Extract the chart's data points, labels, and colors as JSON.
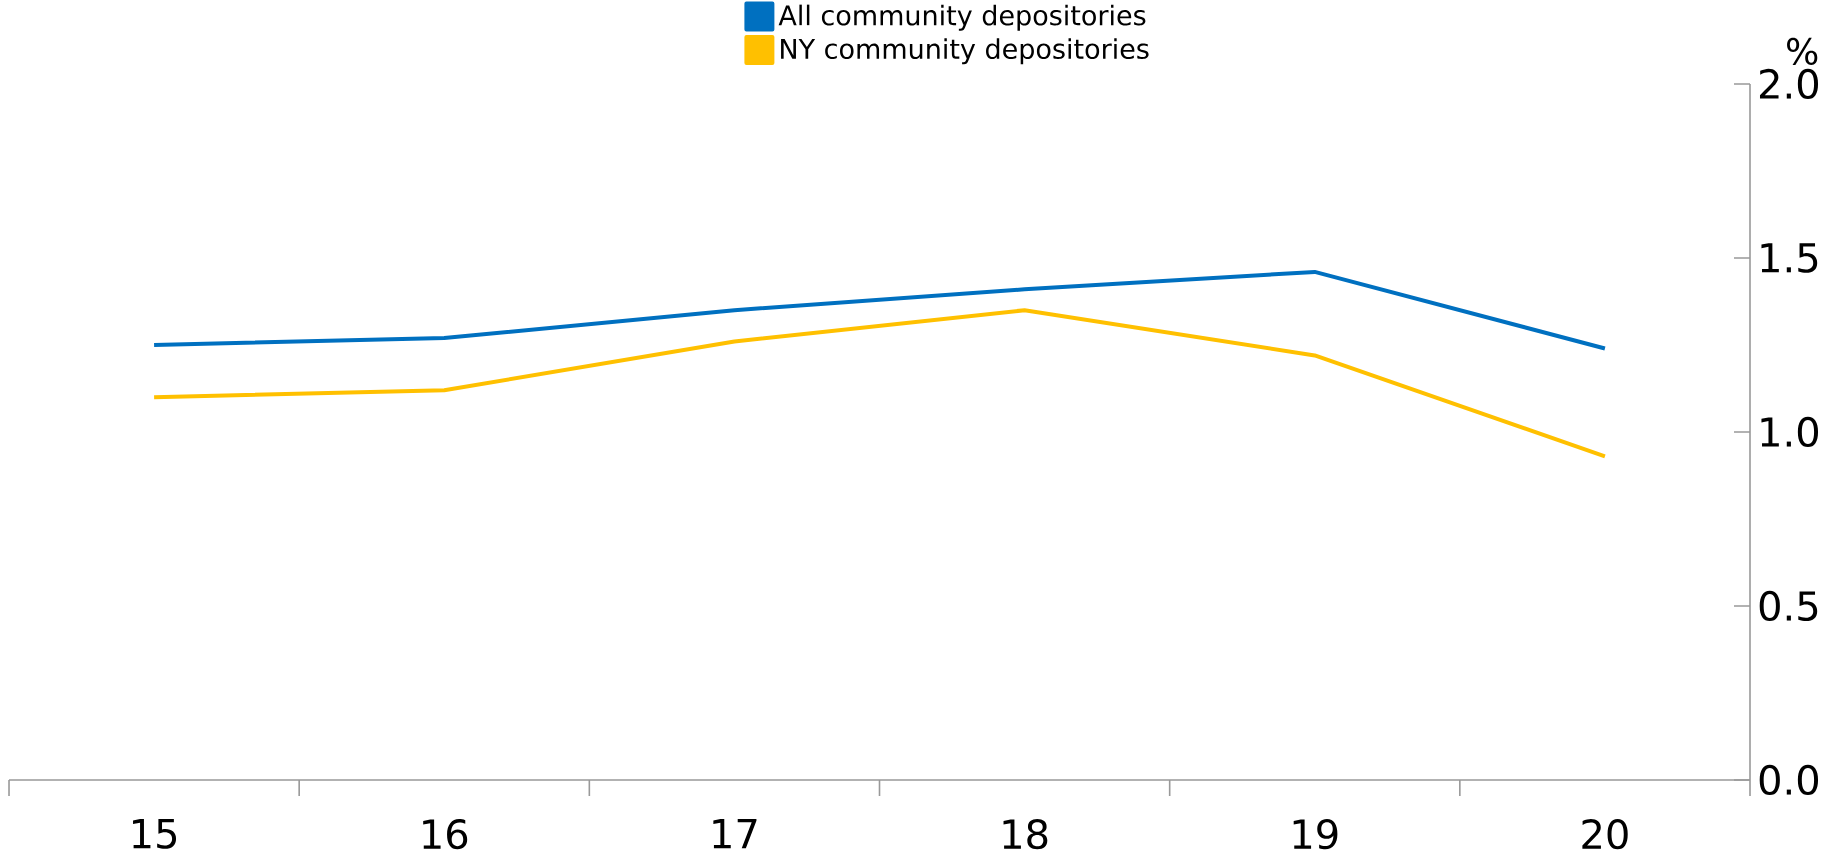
{
  "chart_data": {
    "type": "line",
    "ylabel": "%",
    "categories": [
      "15",
      "16",
      "17",
      "18",
      "19",
      "20"
    ],
    "series": [
      {
        "name": "All community depositories",
        "color": "#0070c0",
        "values": [
          1.25,
          1.27,
          1.35,
          1.41,
          1.46,
          1.24
        ]
      },
      {
        "name": "NY community depositories",
        "color": "#ffc000",
        "values": [
          1.1,
          1.12,
          1.26,
          1.35,
          1.22,
          0.93
        ]
      }
    ],
    "ylim": [
      0,
      2
    ],
    "yticks": [
      {
        "value": 0,
        "label": "0.0"
      },
      {
        "value": 0.5,
        "label": "0.5"
      },
      {
        "value": 1,
        "label": "1.0"
      },
      {
        "value": 1.5,
        "label": "1.5"
      },
      {
        "value": 2,
        "label": "2.0"
      }
    ],
    "legend": "top",
    "line_style": "solid"
  }
}
